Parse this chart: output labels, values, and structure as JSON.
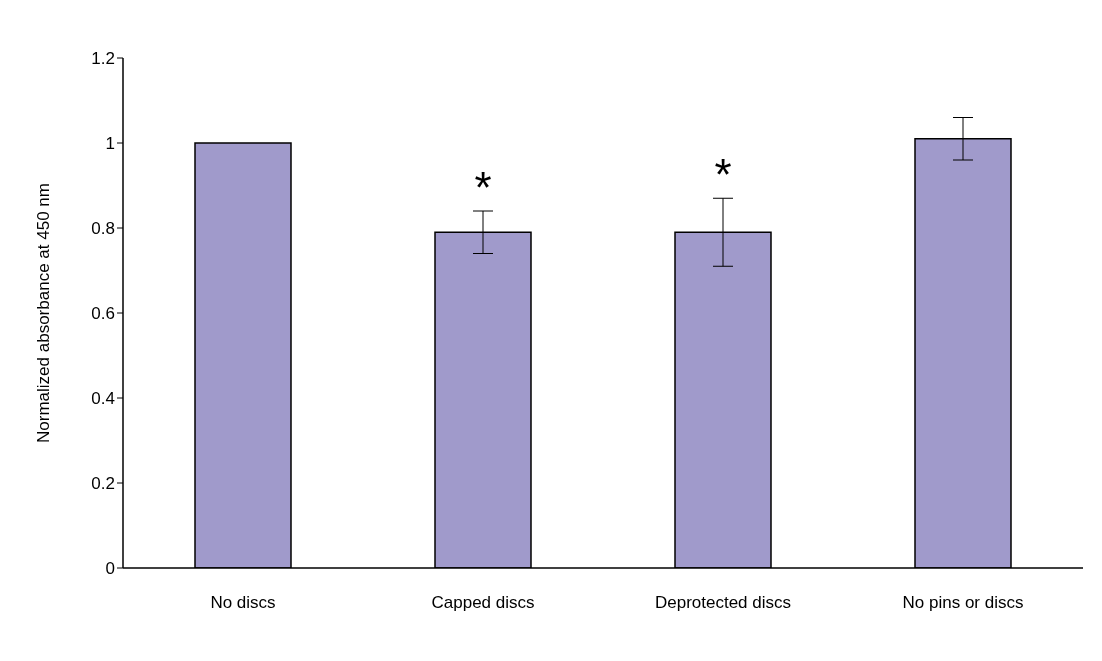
{
  "chart_data": {
    "type": "bar",
    "ylabel": "Normalized absorbance at 450 nm",
    "categories": [
      "No discs",
      "Capped discs",
      "Deprotected discs",
      "No pins or discs"
    ],
    "values": [
      1.0,
      0.79,
      0.79,
      1.01
    ],
    "errors": [
      null,
      0.05,
      0.08,
      0.05
    ],
    "color": "#a09acb",
    "ylim": [
      0,
      1.2
    ],
    "yticks": [
      0,
      0.2,
      0.4,
      0.6,
      0.8,
      1,
      1.2
    ],
    "grid": false,
    "legend": false,
    "annotations": [
      {
        "text": "*",
        "x": "Capped discs",
        "y": 0.84
      },
      {
        "text": "*",
        "x": "Deprotected discs",
        "y": 0.87
      }
    ]
  }
}
